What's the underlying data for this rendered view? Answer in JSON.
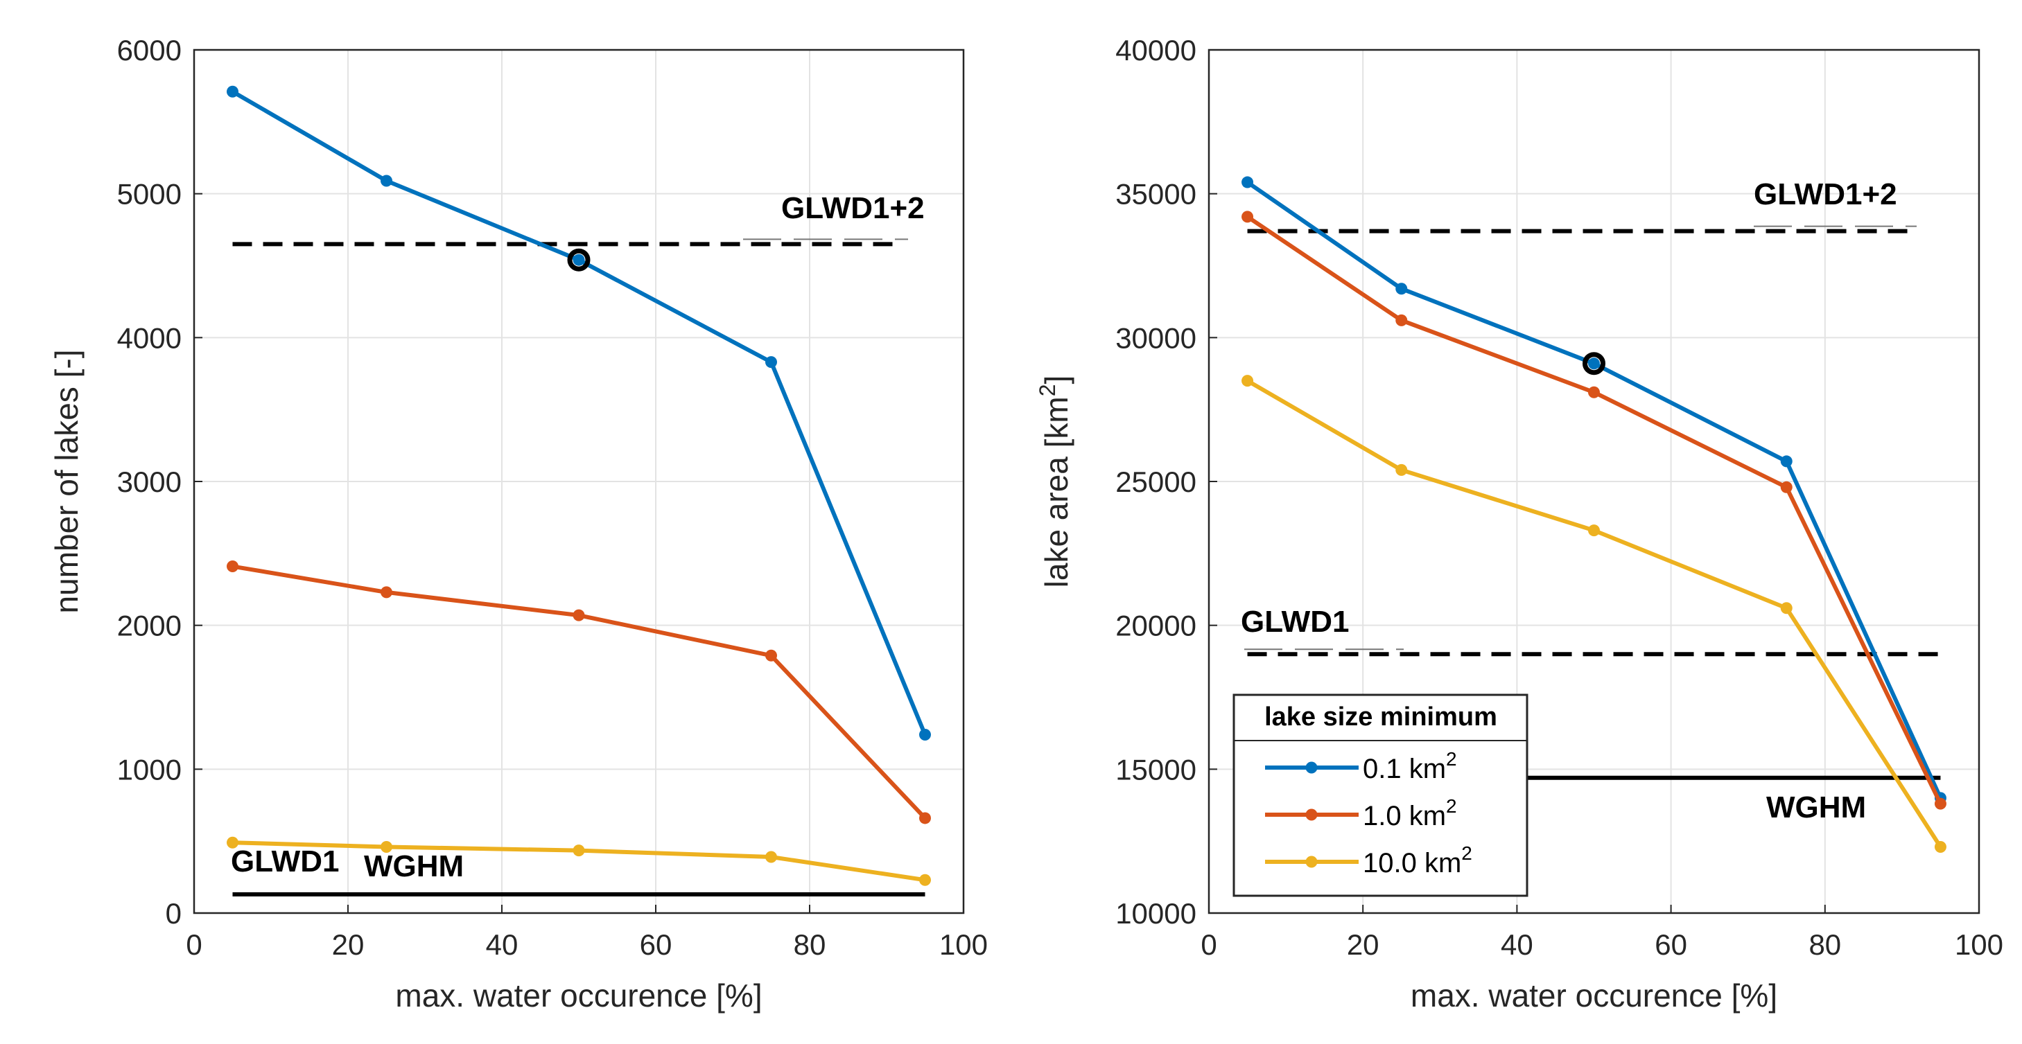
{
  "chart_data": [
    {
      "type": "line",
      "id": "left",
      "xlabel": "max. water occurence [%]",
      "ylabel": "number of lakes [-]",
      "xlim": [
        0,
        100
      ],
      "ylim": [
        0,
        6000
      ],
      "xticks": [
        0,
        20,
        40,
        60,
        80,
        100
      ],
      "yticks": [
        0,
        1000,
        2000,
        3000,
        4000,
        5000,
        6000
      ],
      "grid": true,
      "x": [
        5,
        25,
        50,
        75,
        95
      ],
      "series": [
        {
          "name": "0.1 km2",
          "color": "#0072BD",
          "values": [
            5710,
            5090,
            4540,
            3830,
            1240
          ]
        },
        {
          "name": "1.0 km2",
          "color": "#D95319",
          "values": [
            2410,
            2230,
            2070,
            1790,
            660
          ]
        },
        {
          "name": "10.0 km2",
          "color": "#EDB120",
          "values": [
            490,
            460,
            435,
            390,
            230
          ]
        }
      ],
      "highlight": {
        "x": 50,
        "y": 4540
      },
      "reference_lines": [
        {
          "label": "GLWD1+2",
          "value": 4650,
          "style": "dashed"
        },
        {
          "label": "GLWD1",
          "value": 130,
          "style": "dashed"
        },
        {
          "label": "WGHM",
          "value": 130,
          "style": "solid"
        }
      ]
    },
    {
      "type": "line",
      "id": "right",
      "xlabel": "max. water occurence [%]",
      "ylabel": "lake area [km",
      "ylabel_sup": "2",
      "ylabel_end": "]",
      "xlim": [
        0,
        100
      ],
      "ylim": [
        10000,
        40000
      ],
      "xticks": [
        0,
        20,
        40,
        60,
        80,
        100
      ],
      "yticks": [
        10000,
        15000,
        20000,
        25000,
        30000,
        35000,
        40000
      ],
      "grid": true,
      "x": [
        5,
        25,
        50,
        75,
        95
      ],
      "series": [
        {
          "name": "0.1 km2",
          "color": "#0072BD",
          "values": [
            35400,
            31700,
            29100,
            25700,
            14000
          ]
        },
        {
          "name": "1.0 km2",
          "color": "#D95319",
          "values": [
            34200,
            30600,
            28100,
            24800,
            13800
          ]
        },
        {
          "name": "10.0 km2",
          "color": "#EDB120",
          "values": [
            28500,
            25400,
            23300,
            20600,
            12300
          ]
        }
      ],
      "highlight": {
        "x": 50,
        "y": 29100
      },
      "reference_lines": [
        {
          "label": "GLWD1+2",
          "value": 33700,
          "style": "dashed"
        },
        {
          "label": "GLWD1",
          "value": 19000,
          "style": "dashed"
        },
        {
          "label": "WGHM",
          "value": 14700,
          "style": "solid"
        }
      ]
    }
  ],
  "legend": {
    "title": "lake size minimum",
    "entries": [
      {
        "text": "0.1 km",
        "sup": "2",
        "color": "#0072BD"
      },
      {
        "text": "1.0 km",
        "sup": "2",
        "color": "#D95319"
      },
      {
        "text": "10.0 km",
        "sup": "2",
        "color": "#EDB120"
      }
    ]
  }
}
